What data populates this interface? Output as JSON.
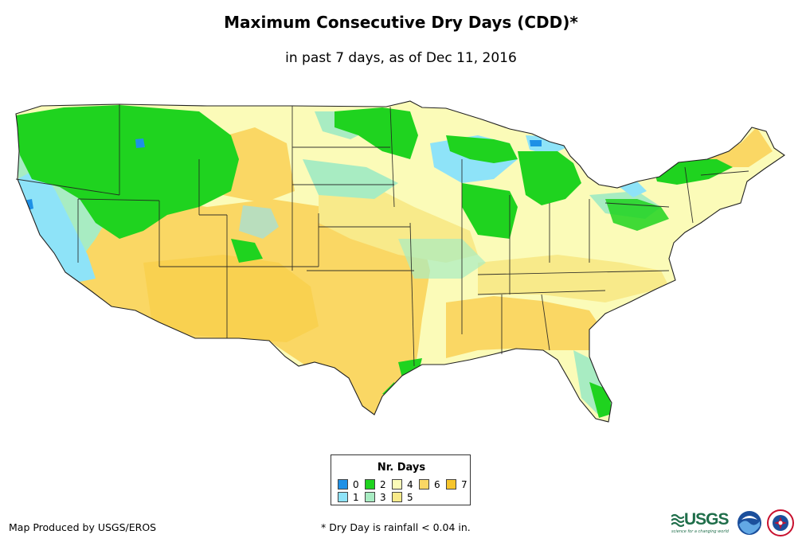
{
  "title": "Maximum Consecutive Dry Days (CDD)*",
  "subtitle": "in past 7 days, as of Dec 11, 2016",
  "legend": {
    "title": "Nr. Days",
    "items": [
      {
        "label": "0",
        "color": "#1e90e6"
      },
      {
        "label": "1",
        "color": "#8ee3f8"
      },
      {
        "label": "2",
        "color": "#1fd31f"
      },
      {
        "label": "3",
        "color": "#a8ecc2"
      },
      {
        "label": "4",
        "color": "#fbfbb8"
      },
      {
        "label": "5",
        "color": "#f8ea8a"
      },
      {
        "label": "6",
        "color": "#fad764"
      },
      {
        "label": "7",
        "color": "#f6c52c"
      }
    ]
  },
  "credit": "Map Produced by USGS/EROS",
  "footnote": "* Dry Day is rainfall < 0.04 in.",
  "logos": {
    "usgs_word": "USGS",
    "usgs_tagline": "science for a changing world",
    "noaa": "noaa-logo",
    "nws": "nws-logo"
  }
}
